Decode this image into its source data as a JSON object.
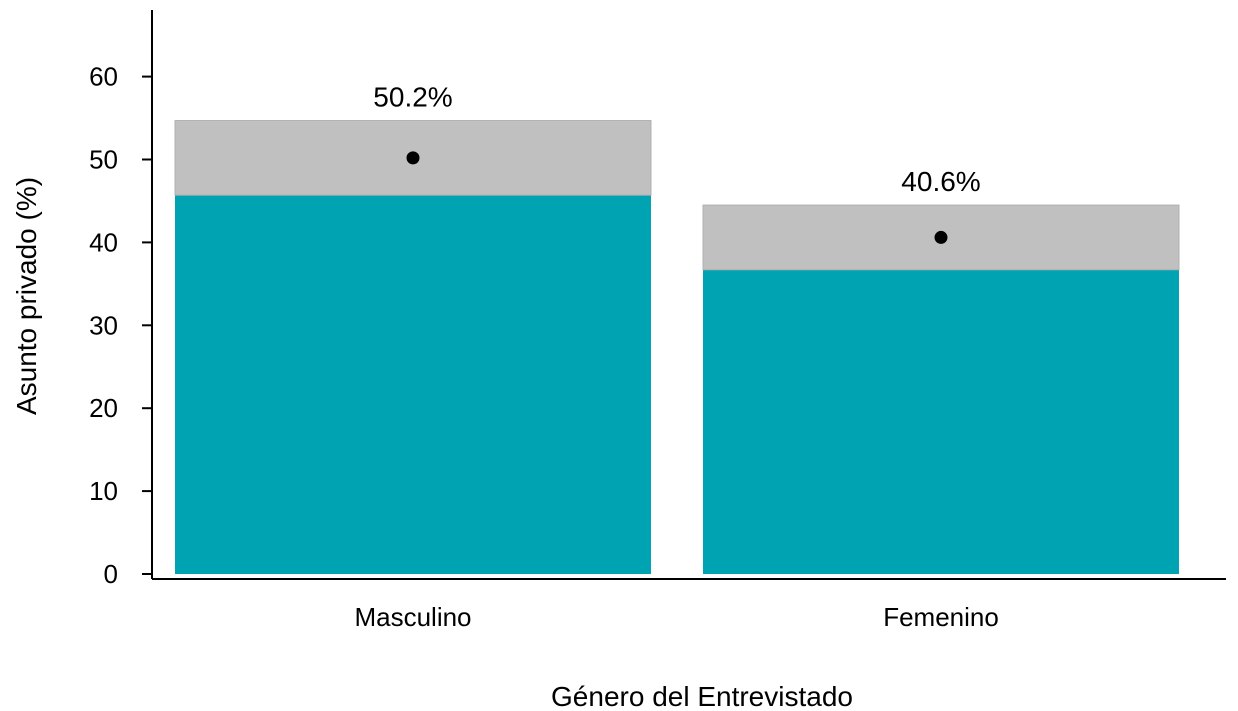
{
  "chart_data": {
    "type": "bar",
    "title": "",
    "xlabel": "Género del Entrevistado",
    "ylabel": "Asunto privado (%)",
    "categories": [
      "Masculino",
      "Femenino"
    ],
    "values": [
      50.2,
      40.6
    ],
    "data_labels": [
      "50.2%",
      "40.6%"
    ],
    "ci_low": [
      45.7,
      36.7
    ],
    "ci_high": [
      54.7,
      44.5
    ],
    "ylim": [
      0,
      67
    ],
    "yticks": [
      0,
      10,
      20,
      30,
      40,
      50,
      60
    ],
    "grid": false,
    "legend": "none",
    "colors": {
      "bar": "#00a3b2",
      "ci": "#c0c0c0",
      "point": "#000000",
      "axis": "#000000"
    }
  }
}
